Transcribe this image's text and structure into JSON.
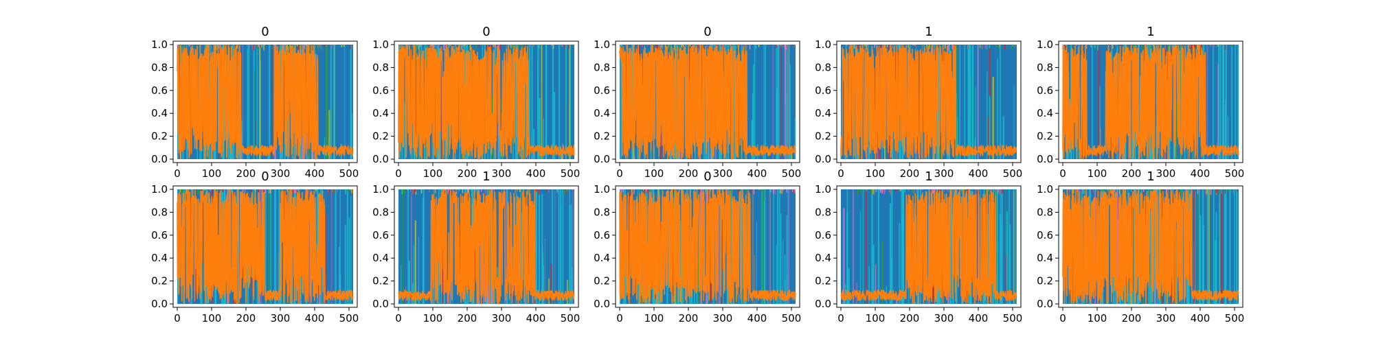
{
  "chart_data": {
    "type": "line",
    "layout": "2x5 grid of subplots",
    "grid": false,
    "legend": "none",
    "colors": {
      "primary_series": "#ff7f0e",
      "background_series": "#1f77b4",
      "other_series": [
        "#17becf",
        "#bcbd22",
        "#9467bd",
        "#e377c2",
        "#7f7f7f",
        "#2ca02c",
        "#d62728"
      ]
    },
    "x_ticks": [
      0,
      100,
      200,
      300,
      400,
      500
    ],
    "y_ticks": [
      0.0,
      0.2,
      0.4,
      0.6,
      0.8,
      1.0
    ],
    "x_tick_labels": [
      "0",
      "100",
      "200",
      "300",
      "400",
      "500"
    ],
    "y_tick_labels": [
      "0.0",
      "0.2",
      "0.4",
      "0.6",
      "0.8",
      "1.0"
    ],
    "xlim": [
      -12,
      524
    ],
    "ylim": [
      -0.03,
      1.03
    ],
    "subplots": [
      {
        "title": "0",
        "high_segments": [
          [
            0,
            185
          ],
          [
            280,
            410
          ]
        ]
      },
      {
        "title": "0",
        "high_segments": [
          [
            0,
            380
          ]
        ]
      },
      {
        "title": "0",
        "high_segments": [
          [
            0,
            370
          ]
        ]
      },
      {
        "title": "1",
        "high_segments": [
          [
            0,
            335
          ]
        ]
      },
      {
        "title": "1",
        "high_segments": [
          [
            0,
            70
          ],
          [
            125,
            415
          ]
        ]
      },
      {
        "title": "0",
        "high_segments": [
          [
            0,
            255
          ],
          [
            300,
            430
          ]
        ]
      },
      {
        "title": "1",
        "high_segments": [
          [
            95,
            400
          ]
        ]
      },
      {
        "title": "0",
        "high_segments": [
          [
            0,
            380
          ]
        ]
      },
      {
        "title": "1",
        "high_segments": [
          [
            190,
            450
          ]
        ]
      },
      {
        "title": "1",
        "high_segments": [
          [
            0,
            375
          ]
        ]
      }
    ]
  }
}
